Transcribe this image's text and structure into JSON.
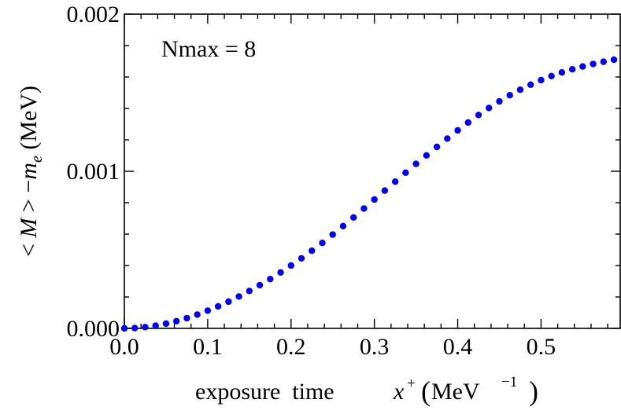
{
  "chart_data": {
    "type": "scatter",
    "title": "",
    "xlabel": {
      "text": "exposure  time",
      "var": "x",
      "sup": "+",
      "unit": "MeV",
      "unit_exp": "−1"
    },
    "ylabel": {
      "left": "< ",
      "var_m": "M",
      "mid": " > −",
      "var_me": "m",
      "sub": "e",
      "unit": " (MeV)"
    },
    "annotation": "Nmax = 8",
    "xlim": [
      0.0,
      0.595
    ],
    "ylim": [
      0.0,
      0.002
    ],
    "x_ticks": [
      "0.0",
      "0.1",
      "0.2",
      "0.3",
      "0.4",
      "0.5"
    ],
    "x_tick_values": [
      0.0,
      0.1,
      0.2,
      0.3,
      0.4,
      0.5
    ],
    "y_ticks": [
      "0.000",
      "0.001",
      "0.002"
    ],
    "y_tick_values": [
      0.0,
      0.001,
      0.002
    ],
    "series": [
      {
        "color": "#0000ee",
        "x": [
          0.0,
          0.0125,
          0.025,
          0.0375,
          0.05,
          0.0625,
          0.075,
          0.0875,
          0.1,
          0.1125,
          0.125,
          0.1375,
          0.15,
          0.1625,
          0.175,
          0.1875,
          0.2,
          0.2125,
          0.225,
          0.2375,
          0.25,
          0.2625,
          0.275,
          0.2875,
          0.3,
          0.3125,
          0.325,
          0.3375,
          0.35,
          0.3625,
          0.375,
          0.3875,
          0.4,
          0.4125,
          0.425,
          0.4375,
          0.45,
          0.4625,
          0.475,
          0.4875,
          0.5,
          0.5125,
          0.525,
          0.5375,
          0.55,
          0.5625,
          0.575,
          0.5875
        ],
        "y": [
          0.0,
          2e-06,
          8e-06,
          1.7e-05,
          3e-05,
          4.6e-05,
          6.5e-05,
          8.8e-05,
          0.000113,
          0.00014,
          0.00017,
          0.000203,
          0.000238,
          0.000275,
          0.000314,
          0.000356,
          0.0004,
          0.000446,
          0.000494,
          0.000544,
          0.000597,
          0.000651,
          0.000706,
          0.000763,
          0.00082,
          0.000877,
          0.000934,
          0.000991,
          0.001047,
          0.001101,
          0.001155,
          0.001208,
          0.00126,
          0.00131,
          0.001358,
          0.001403,
          0.001445,
          0.001484,
          0.001519,
          0.001551,
          0.00158,
          0.001606,
          0.001629,
          0.001649,
          0.001667,
          0.001683,
          0.001697,
          0.00171
        ]
      }
    ]
  }
}
